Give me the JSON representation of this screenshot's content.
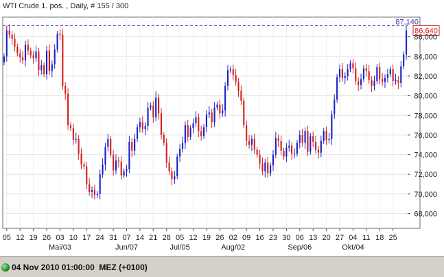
{
  "chart_data": {
    "type": "candlestick",
    "title": "WTI Crude 1. pos. , Daily, # 155 / 300",
    "ylim": [
      66500,
      88000
    ],
    "y_ticks": [
      68000,
      70000,
      72000,
      74000,
      76000,
      78000,
      80000,
      82000,
      84000,
      86000
    ],
    "y_tick_labels": [
      "68,000",
      "70,000",
      "72,000",
      "74,000",
      "76,000",
      "78,000",
      "80,000",
      "82,000",
      "84,000",
      "86,000"
    ],
    "x_ticks": [
      {
        "index": 1,
        "label": "05"
      },
      {
        "index": 6,
        "label": "12"
      },
      {
        "index": 11,
        "label": "19"
      },
      {
        "index": 16,
        "label": "26"
      },
      {
        "index": 21,
        "label": "03"
      },
      {
        "index": 26,
        "label": "10"
      },
      {
        "index": 31,
        "label": "17"
      },
      {
        "index": 36,
        "label": "24"
      },
      {
        "index": 41,
        "label": "31"
      },
      {
        "index": 46,
        "label": "07"
      },
      {
        "index": 51,
        "label": "14"
      },
      {
        "index": 56,
        "label": "21"
      },
      {
        "index": 61,
        "label": "28"
      },
      {
        "index": 66,
        "label": "05"
      },
      {
        "index": 71,
        "label": "12"
      },
      {
        "index": 76,
        "label": "19"
      },
      {
        "index": 81,
        "label": "26"
      },
      {
        "index": 86,
        "label": "02"
      },
      {
        "index": 91,
        "label": "09"
      },
      {
        "index": 96,
        "label": "16"
      },
      {
        "index": 101,
        "label": "23"
      },
      {
        "index": 106,
        "label": "30"
      },
      {
        "index": 111,
        "label": "06"
      },
      {
        "index": 116,
        "label": "13"
      },
      {
        "index": 121,
        "label": "20"
      },
      {
        "index": 126,
        "label": "27"
      },
      {
        "index": 131,
        "label": "04"
      },
      {
        "index": 136,
        "label": "11"
      },
      {
        "index": 141,
        "label": "18"
      },
      {
        "index": 146,
        "label": "25"
      }
    ],
    "month_labels": [
      {
        "index": 21,
        "label": "Mai/03"
      },
      {
        "index": 46,
        "label": "Jun/07"
      },
      {
        "index": 66,
        "label": "Jul/05"
      },
      {
        "index": 86,
        "label": "Aug/02"
      },
      {
        "index": 111,
        "label": "Sep/06"
      },
      {
        "index": 131,
        "label": "Okt/04"
      }
    ],
    "high_line": {
      "value": 87140,
      "label": "87,140",
      "color": "#3a3aa8"
    },
    "last_price": {
      "value": 86640,
      "label": "86,640",
      "color": "#cc2222"
    },
    "up_color": "#1c22c8",
    "down_color": "#d42020",
    "closes": [
      84000,
      86640,
      86200,
      85800,
      85000,
      84300,
      83900,
      83600,
      85200,
      84600,
      84100,
      83800,
      84500,
      82600,
      83100,
      82200,
      84600,
      82500,
      83200,
      84700,
      86300,
      86200,
      81000,
      80200,
      77000,
      76700,
      75500,
      75600,
      74100,
      73000,
      72800,
      71000,
      70200,
      70400,
      69900,
      70000,
      72000,
      73000,
      74800,
      75600,
      74000,
      72400,
      73400,
      73300,
      71900,
      72300,
      72500,
      75300,
      74400,
      75600,
      76800,
      77300,
      76600,
      76900,
      78800,
      79000,
      77800,
      79800,
      78200,
      76000,
      75200,
      73200,
      72300,
      71500,
      71800,
      73800,
      74600,
      75200,
      77000,
      75800,
      76700,
      77200,
      77800,
      76400,
      75900,
      76800,
      78100,
      78300,
      77300,
      78800,
      79100,
      78200,
      78500,
      81000,
      82600,
      82700,
      82100,
      81400,
      80500,
      79500,
      77000,
      75400,
      75000,
      75600,
      74500,
      74000,
      73100,
      72300,
      73200,
      72100,
      72900,
      74000,
      75700,
      75400,
      74400,
      73800,
      74700,
      74900,
      74100,
      74100,
      75200,
      76000,
      75200,
      76400,
      74300,
      75900,
      75300,
      74500,
      74200,
      75400,
      76400,
      75500,
      75600,
      78100,
      79600,
      81900,
      82700,
      81800,
      82000,
      82700,
      83300,
      82800,
      81500,
      81100,
      81700,
      82800,
      82500,
      81600,
      81000,
      81500,
      82900,
      81700,
      81400,
      81800,
      82200,
      82700,
      81500,
      81600,
      81300,
      83000,
      84200,
      86640
    ]
  },
  "status": {
    "text": "04 Nov 2010 01:00:00  MEZ (+0100)",
    "indicator_color": "#1f8a1f"
  }
}
